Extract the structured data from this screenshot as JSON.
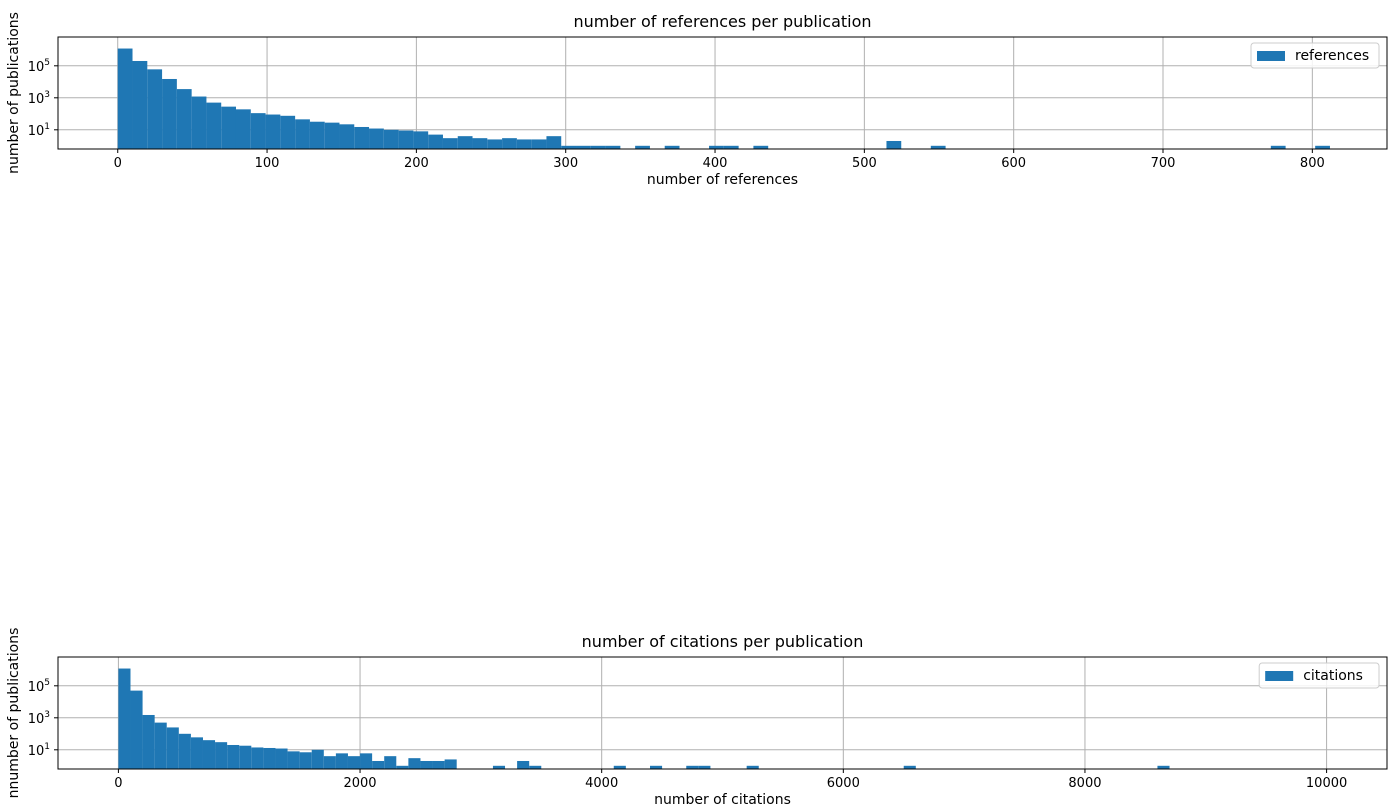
{
  "chart_data": [
    {
      "type": "bar",
      "subtype": "histogram",
      "title": "number of references per publication",
      "xlabel": "number of references",
      "ylabel": "number of publications",
      "legend": [
        "references"
      ],
      "legend_position": "top-right",
      "y_scale": "log",
      "grid": true,
      "color": "#1f77b4",
      "xlim": [
        -40,
        850
      ],
      "x_ticks": [
        "0",
        "100",
        "200",
        "300",
        "400",
        "500",
        "600",
        "700",
        "800"
      ],
      "y_ticks": [
        "10^1",
        "10^3",
        "10^5"
      ],
      "series": [
        {
          "name": "references",
          "bin_start": 0,
          "bin_width": 9.9,
          "values": [
            1200000,
            200000,
            60000,
            15000,
            3500,
            1200,
            500,
            280,
            190,
            110,
            90,
            75,
            45,
            32,
            28,
            22,
            15,
            12,
            10,
            9,
            8,
            5,
            3,
            4,
            3,
            2.5,
            3,
            2.5,
            2.5,
            4,
            1,
            1,
            1,
            1,
            0,
            1,
            0,
            1,
            0,
            0,
            1,
            1,
            0,
            1,
            0,
            0,
            0,
            0,
            0,
            0,
            0,
            0,
            2,
            0,
            0,
            1,
            0,
            0,
            0,
            0,
            0,
            0,
            0,
            0,
            0,
            0,
            0,
            0,
            0,
            0,
            0,
            0,
            0,
            0,
            0,
            0,
            0,
            0,
            1,
            0,
            0,
            1
          ]
        }
      ]
    },
    {
      "type": "bar",
      "subtype": "histogram",
      "title": "number of citations per publication",
      "xlabel": "number of citations",
      "ylabel": "nnumber of publications",
      "legend": [
        "citations"
      ],
      "legend_position": "top-right",
      "y_scale": "log",
      "grid": true,
      "color": "#1f77b4",
      "xlim": [
        -500,
        10500
      ],
      "x_ticks": [
        "0",
        "2000",
        "4000",
        "6000",
        "8000",
        "10000"
      ],
      "y_ticks": [
        "10^1",
        "10^3",
        "10^5"
      ],
      "series": [
        {
          "name": "citations",
          "bin_start": 0,
          "bin_width": 100,
          "values": [
            1200000,
            50000,
            1500,
            500,
            250,
            100,
            60,
            40,
            30,
            20,
            18,
            14,
            13,
            12,
            8,
            7,
            10,
            4,
            6,
            4,
            6,
            2,
            4,
            1,
            3,
            2,
            2,
            2.5,
            0,
            0,
            0,
            1,
            0,
            2,
            1,
            0,
            0,
            0,
            0,
            0,
            0,
            1,
            0,
            0,
            1,
            0,
            0,
            1,
            1,
            0,
            0,
            0,
            1,
            0,
            0,
            0,
            0,
            0,
            0,
            0,
            0,
            0,
            0,
            0,
            0,
            1,
            0,
            0,
            0,
            0,
            0,
            0,
            0,
            0,
            0,
            0,
            0,
            0,
            0,
            0,
            0,
            0,
            0,
            0,
            0,
            0,
            1
          ]
        }
      ]
    }
  ]
}
